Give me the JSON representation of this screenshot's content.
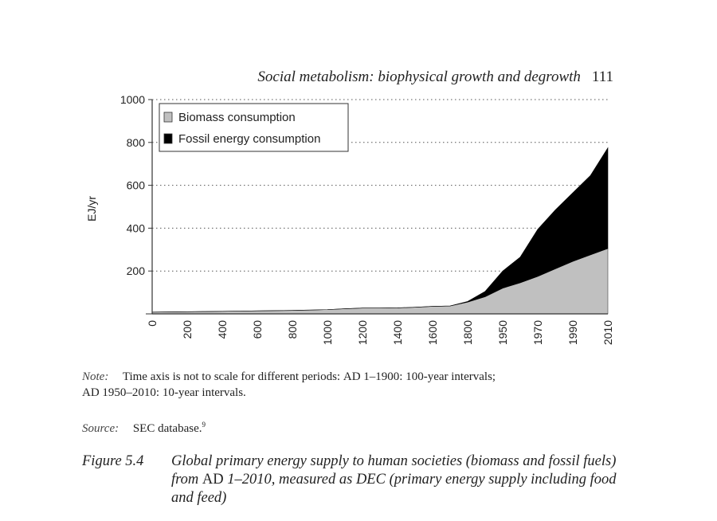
{
  "running_header": {
    "title": "Social metabolism: biophysical growth and degrowth",
    "page_number": "111"
  },
  "chart_data": {
    "type": "area",
    "stacked": true,
    "ylabel": "EJ/yr",
    "xlabel": "",
    "ylim": [
      0,
      1000
    ],
    "yticks": [
      200,
      400,
      600,
      800,
      1000
    ],
    "grid": "horizontal dotted",
    "legend_placement": "top-left",
    "x": [
      0,
      100,
      200,
      300,
      400,
      500,
      600,
      700,
      800,
      900,
      1000,
      1100,
      1200,
      1300,
      1400,
      1500,
      1600,
      1700,
      1800,
      1900,
      1950,
      1960,
      1970,
      1980,
      1990,
      2000,
      2010
    ],
    "xtick_labels": [
      "0",
      "200",
      "400",
      "600",
      "800",
      "1000",
      "1200",
      "1400",
      "1600",
      "1800",
      "1950",
      "1970",
      "1990",
      "2010"
    ],
    "series": [
      {
        "name": "Biomass consumption",
        "color": "#c0c0c0",
        "values": [
          8,
          9,
          10,
          11,
          12,
          13,
          14,
          15,
          16,
          18,
          20,
          24,
          27,
          27,
          28,
          31,
          35,
          37,
          55,
          80,
          120,
          145,
          175,
          210,
          245,
          275,
          305
        ]
      },
      {
        "name": "Fossil energy consumption",
        "color": "#000000",
        "values": [
          0,
          0,
          0,
          0,
          0,
          0,
          0,
          0,
          0,
          0,
          0,
          0,
          0,
          0,
          0,
          0,
          0,
          0,
          3,
          25,
          80,
          120,
          220,
          275,
          320,
          370,
          470
        ]
      }
    ]
  },
  "note": {
    "label": "Note:",
    "text_1": "Time axis is not to scale for different periods:",
    "ad1": "AD",
    "text_2": "1–1900: 100-year intervals;",
    "ad2": "AD",
    "text_3": "1950–2010: 10-year intervals."
  },
  "source": {
    "label": "Source:",
    "text": "SEC database.",
    "footnote": "9"
  },
  "caption": {
    "number": "Figure 5.4",
    "text_1": "Global primary energy supply to human societies (biomass and fossil fuels) from",
    "ad": "AD",
    "text_2": "1–2010, measured as DEC (primary energy supply including food and feed)"
  }
}
